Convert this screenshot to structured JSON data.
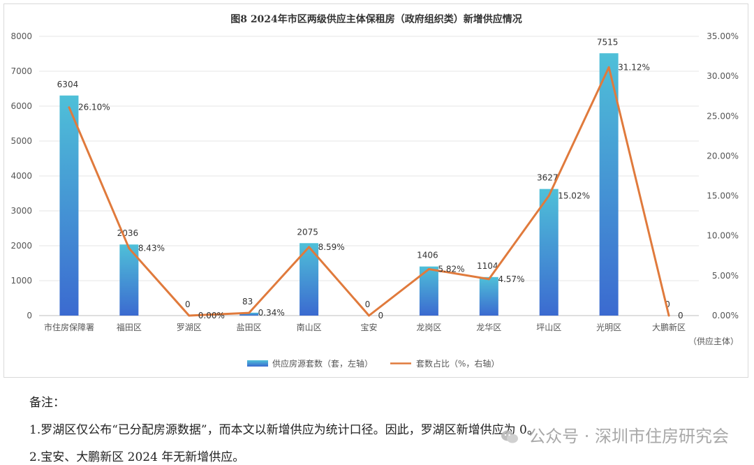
{
  "chart_data": {
    "type": "bar+line",
    "title": "图8 2024年市区两级供应主体保租房（政府组织类）新增供应情况",
    "categories": [
      "市住房保障署",
      "福田区",
      "罗湖区",
      "盐田区",
      "南山区",
      "宝安",
      "龙岗区",
      "龙华区",
      "坪山区",
      "光明区",
      "大鹏新区"
    ],
    "x_axis_unit": "（供应主体）",
    "left_axis": {
      "min": 0,
      "max": 8000,
      "ticks": [
        "0",
        "1000",
        "2000",
        "3000",
        "4000",
        "5000",
        "6000",
        "7000",
        "8000"
      ]
    },
    "right_axis": {
      "min": 0,
      "max": 35,
      "ticks": [
        "0.00%",
        "5.00%",
        "10.00%",
        "15.00%",
        "20.00%",
        "25.00%",
        "30.00%",
        "35.00%"
      ]
    },
    "series": [
      {
        "name": "供应房源套数（套，左轴）",
        "kind": "bar",
        "axis": "left",
        "values": [
          6304,
          2036,
          0,
          83,
          2075,
          0,
          1406,
          1104,
          3627,
          7515,
          0
        ],
        "labels": [
          "6304",
          "2036",
          "0",
          "83",
          "2075",
          "0",
          "1406",
          "1104",
          "3627",
          "7515",
          "0"
        ]
      },
      {
        "name": "套数占比（%，右轴）",
        "kind": "line",
        "axis": "right",
        "values": [
          26.1,
          8.43,
          0.0,
          0.34,
          8.59,
          0,
          5.82,
          4.57,
          15.02,
          31.12,
          0
        ],
        "labels": [
          "26.10%",
          "8.43%",
          "0.00%",
          "0.34%",
          "8.59%",
          "0",
          "5.82%",
          "4.57%",
          "15.02%",
          "31.12%",
          "0"
        ]
      }
    ],
    "legend_position": "bottom-center",
    "grid": true,
    "colors": {
      "bar_top": "#4fbfd9",
      "bar_bottom": "#3b6fd1",
      "line": "#e07a3c",
      "grid": "#e3e3e3"
    }
  },
  "notes": {
    "heading": "备注：",
    "line1": "1.罗湖区仅公布“已分配房源数据”，而本文以新增供应为统计口径。因此，罗湖区新增供应为 0。",
    "line2": "2.宝安、大鹏新区 2024 年无新增供应。"
  },
  "watermark": {
    "text": "公众号 · 深圳市住房研究会",
    "icon": "wechat-icon"
  }
}
